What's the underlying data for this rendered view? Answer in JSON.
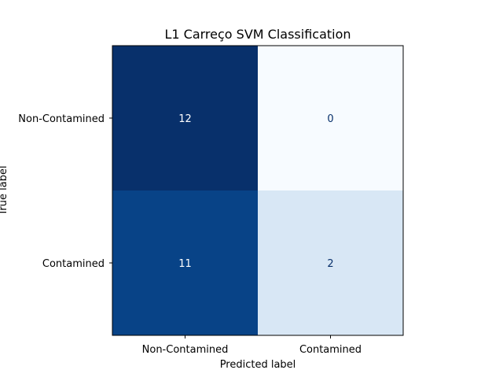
{
  "chart_data": {
    "type": "heatmap",
    "title": "L1 Carreço SVM Classification",
    "xlabel": "Predicted label",
    "ylabel": "True label",
    "x_categories": [
      "Non-Contamined",
      "Contamined"
    ],
    "y_categories": [
      "Non-Contamined",
      "Contamined"
    ],
    "values": [
      [
        12,
        0
      ],
      [
        11,
        2
      ]
    ],
    "colormap": "Blues",
    "value_range": [
      0,
      12
    ],
    "colors": {
      "dark": "#08306b",
      "mid_dark": "#08478d",
      "light": "#f7fbff",
      "pale": "#d5e5f4",
      "text_on_dark": "#ffffff",
      "text_on_light": "#08306b"
    },
    "grid": false,
    "legend": "none"
  }
}
